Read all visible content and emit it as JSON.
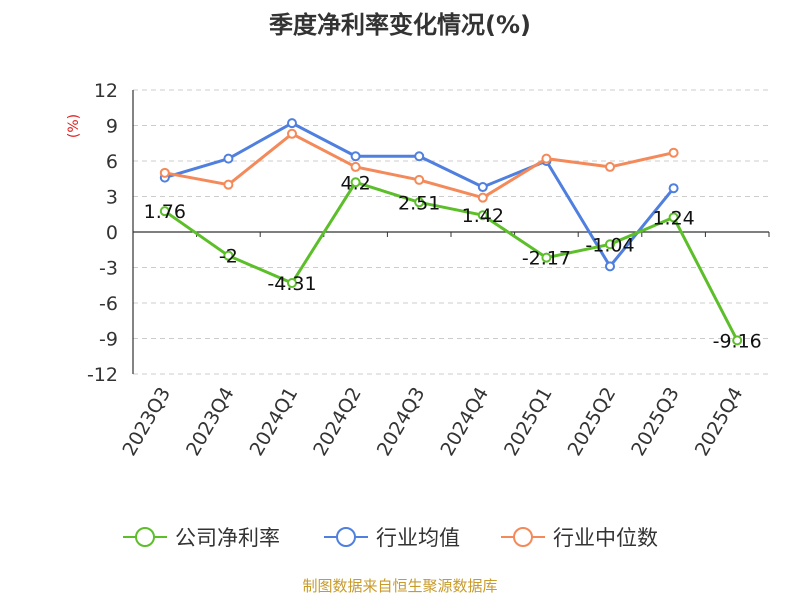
{
  "chart_data": {
    "type": "line",
    "title": "季度净利率变化情况(%)",
    "unit_label": "(%)",
    "categories": [
      "2023Q3",
      "2023Q4",
      "2024Q1",
      "2024Q2",
      "2024Q3",
      "2024Q4",
      "2025Q1",
      "2025Q2",
      "2025Q3",
      "2025Q4"
    ],
    "y_ticks": [
      "12",
      "9",
      "6",
      "3",
      "0",
      "-3",
      "-6",
      "-9",
      "-12"
    ],
    "ylim": [
      -12,
      12
    ],
    "grid": true,
    "legend_position": "bottom",
    "series": [
      {
        "name": "公司净利率",
        "color": "#5cbf2a",
        "values": [
          1.76,
          -2,
          -4.31,
          4.2,
          2.51,
          1.42,
          -2.17,
          -1.04,
          1.24,
          -9.16
        ],
        "labels": [
          "1.76",
          "-2",
          "-4.31",
          "4.2",
          "2.51",
          "1.42",
          "-2.17",
          "-1.04",
          "1.24",
          "-9.16"
        ]
      },
      {
        "name": "行业均值",
        "color": "#4f7fdf",
        "values": [
          4.6,
          6.2,
          9.2,
          6.4,
          6.4,
          3.8,
          6.0,
          -2.9,
          3.7,
          null
        ]
      },
      {
        "name": "行业中位数",
        "color": "#f4895a",
        "values": [
          5.0,
          4.0,
          8.3,
          5.5,
          4.4,
          2.9,
          6.2,
          5.5,
          6.7,
          null
        ]
      }
    ],
    "source": "制图数据来自恒生聚源数据库"
  }
}
